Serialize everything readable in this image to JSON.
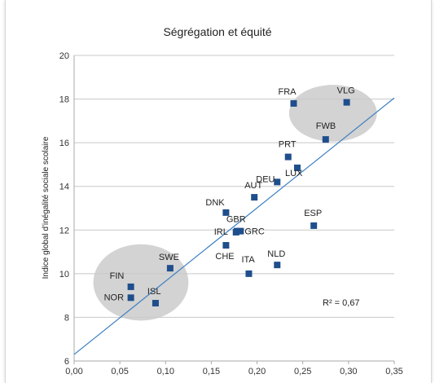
{
  "chart_data": {
    "type": "scatter",
    "title": "Ségrégation et équité",
    "xlabel": "",
    "ylabel": "Indice global d'inégalité sociale scolaire",
    "xlim": [
      0,
      0.35
    ],
    "ylim": [
      6,
      20
    ],
    "x_ticks": [
      "0,00",
      "0,05",
      "0,10",
      "0,15",
      "0,20",
      "0,25",
      "0,30",
      "0,35"
    ],
    "y_ticks": [
      "6",
      "8",
      "10",
      "12",
      "14",
      "16",
      "18",
      "20"
    ],
    "grid": "horizontal",
    "marker_color": "#1f4e8c",
    "trend_color": "#3a7fc1",
    "circle_color": "#d3d3d3",
    "annotation": "R² = 0,67",
    "trendline": {
      "x": [
        0,
        0.35
      ],
      "y": [
        6.3,
        18.05
      ]
    },
    "clusters": [
      {
        "cx": 0.073,
        "cy": 9.6,
        "rx": 0.052,
        "ry": 1.75
      },
      {
        "cx": 0.283,
        "cy": 17.35,
        "rx": 0.048,
        "ry": 1.3
      }
    ],
    "points": [
      {
        "label": "FRA",
        "x": 0.24,
        "y": 17.8
      },
      {
        "label": "VLG",
        "x": 0.298,
        "y": 17.85
      },
      {
        "label": "FWB",
        "x": 0.275,
        "y": 16.15
      },
      {
        "label": "PRT",
        "x": 0.234,
        "y": 15.35
      },
      {
        "label": "LUX",
        "x": 0.244,
        "y": 14.85
      },
      {
        "label": "DEU",
        "x": 0.222,
        "y": 14.2
      },
      {
        "label": "AUT",
        "x": 0.197,
        "y": 13.5
      },
      {
        "label": "DNK",
        "x": 0.166,
        "y": 12.8
      },
      {
        "label": "ESP",
        "x": 0.262,
        "y": 12.2
      },
      {
        "label": "GBR",
        "x": 0.178,
        "y": 11.95
      },
      {
        "label": "IRL",
        "x": 0.177,
        "y": 11.9
      },
      {
        "label": "GRC",
        "x": 0.182,
        "y": 11.95
      },
      {
        "label": "CHE",
        "x": 0.166,
        "y": 11.3
      },
      {
        "label": "NLD",
        "x": 0.222,
        "y": 10.4
      },
      {
        "label": "ITA",
        "x": 0.191,
        "y": 10.0
      },
      {
        "label": "SWE",
        "x": 0.105,
        "y": 10.25
      },
      {
        "label": "FIN",
        "x": 0.062,
        "y": 9.4
      },
      {
        "label": "NOR",
        "x": 0.062,
        "y": 8.9
      },
      {
        "label": "ISL",
        "x": 0.089,
        "y": 8.65
      }
    ]
  }
}
